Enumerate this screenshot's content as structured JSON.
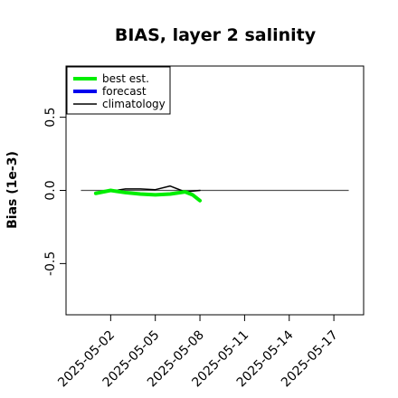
{
  "chart_data": {
    "type": "line",
    "title": "BIAS, layer 2 salinity",
    "xlabel": "",
    "ylabel": "Bias (1e-3)",
    "x_axis": {
      "kind": "date",
      "range": [
        "2025-04-29",
        "2025-05-19"
      ],
      "ticks": [
        "2025-05-02",
        "2025-05-05",
        "2025-05-08",
        "2025-05-11",
        "2025-05-14",
        "2025-05-17"
      ],
      "highlight_tick": "2025-05-08",
      "highlight_color": "#228b22"
    },
    "y_axis": {
      "range": [
        -0.85,
        0.85
      ],
      "ticks": [
        -0.5,
        0.0,
        0.5
      ],
      "tick_labels": [
        "-0.5",
        "0.0",
        "0.5"
      ]
    },
    "reference_line": {
      "y": 0.0,
      "color": "#555555"
    },
    "legend": {
      "position": "top-left",
      "entries": [
        {
          "label": "best est.",
          "color": "#00ee00"
        },
        {
          "label": "forecast",
          "color": "#0000ee"
        },
        {
          "label": "climatology",
          "color": "#000000"
        }
      ]
    },
    "series": [
      {
        "name": "best est.",
        "color": "#00ee00",
        "points": [
          {
            "x": "2025-05-01",
            "y": -0.02
          },
          {
            "x": "2025-05-02",
            "y": 0.0
          },
          {
            "x": "2025-05-03",
            "y": -0.015
          },
          {
            "x": "2025-05-04",
            "y": -0.025
          },
          {
            "x": "2025-05-05",
            "y": -0.03
          },
          {
            "x": "2025-05-06",
            "y": -0.025
          },
          {
            "x": "2025-05-07",
            "y": -0.01
          },
          {
            "x": "2025-05-07 12:00",
            "y": -0.03
          },
          {
            "x": "2025-05-08",
            "y": -0.07
          }
        ]
      },
      {
        "name": "forecast",
        "color": "#0000ee",
        "points": []
      },
      {
        "name": "climatology",
        "color": "#000000",
        "points": [
          {
            "x": "2025-05-01",
            "y": -0.02
          },
          {
            "x": "2025-05-02",
            "y": -0.005
          },
          {
            "x": "2025-05-03",
            "y": 0.01
          },
          {
            "x": "2025-05-04",
            "y": 0.01
          },
          {
            "x": "2025-05-05",
            "y": 0.005
          },
          {
            "x": "2025-05-06",
            "y": 0.03
          },
          {
            "x": "2025-05-07",
            "y": -0.01
          },
          {
            "x": "2025-05-08",
            "y": 0.0
          }
        ]
      }
    ]
  }
}
